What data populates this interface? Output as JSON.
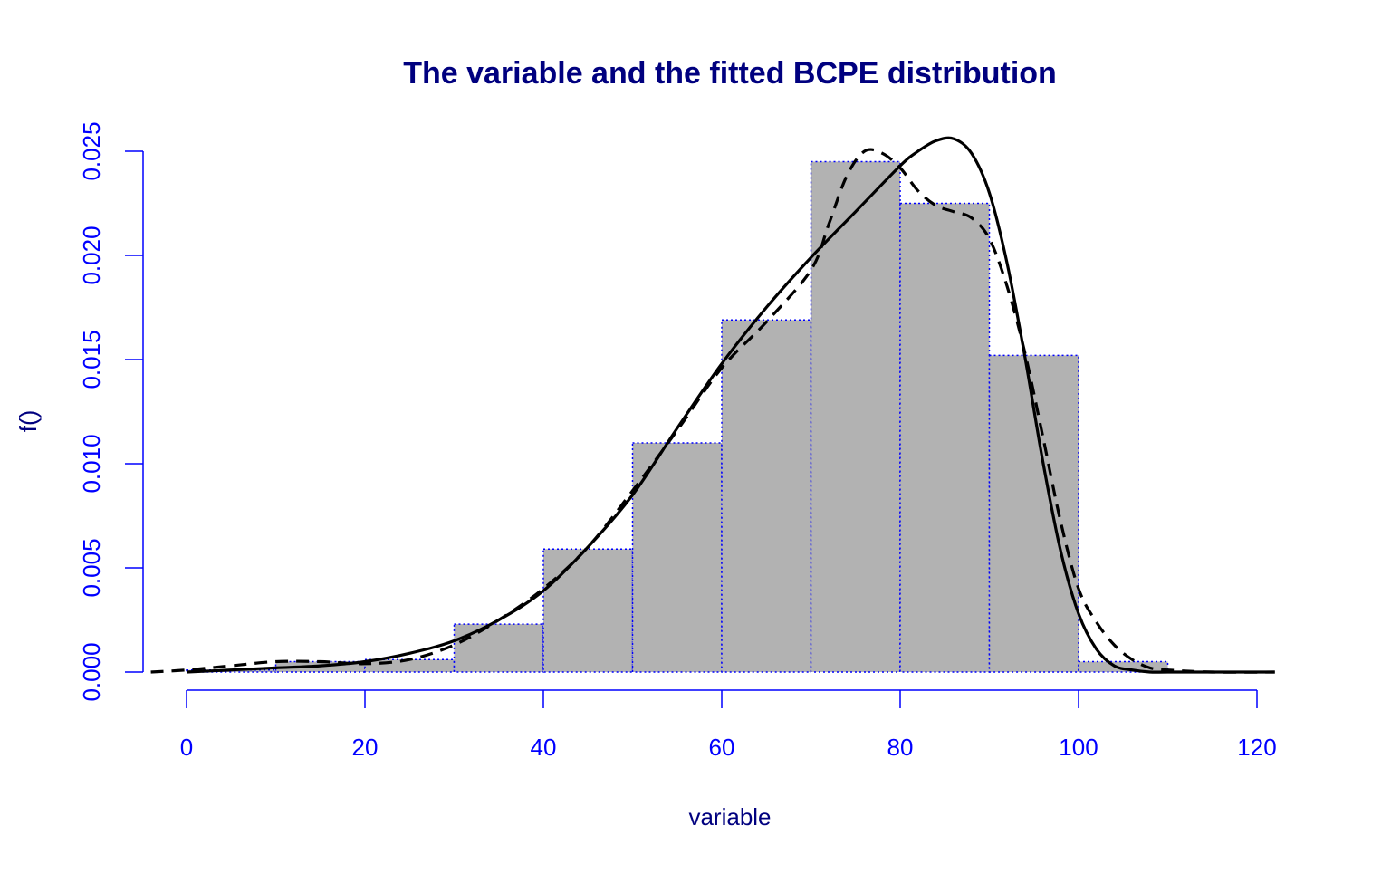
{
  "colors": {
    "title": "#00007f",
    "axis": "#0000ff",
    "axis_label": "#00007f",
    "bar_fill": "#b2b2b2",
    "bar_border": "#0000ff",
    "curve": "#000000"
  },
  "chart_data": {
    "type": "bar",
    "title": "The variable and the fitted BCPE distribution",
    "xlabel": "variable",
    "ylabel": "f()",
    "xlim": [
      -4,
      122
    ],
    "ylim": [
      0,
      0.025
    ],
    "x_ticks": [
      0,
      20,
      40,
      60,
      80,
      100,
      120
    ],
    "x_tick_labels": [
      "0",
      "20",
      "40",
      "60",
      "80",
      "100",
      "120"
    ],
    "y_ticks": [
      0,
      0.005,
      0.01,
      0.015,
      0.02,
      0.025
    ],
    "y_tick_labels": [
      "0.000",
      "0.005",
      "0.010",
      "0.015",
      "0.020",
      "0.025"
    ],
    "grid": false,
    "histogram": {
      "bin_edges": [
        0,
        10,
        20,
        30,
        40,
        50,
        60,
        70,
        80,
        90,
        100,
        110
      ],
      "density": [
        0.0001,
        0.0005,
        0.0006,
        0.0023,
        0.0059,
        0.011,
        0.0169,
        0.0245,
        0.0225,
        0.0152,
        0.0005
      ]
    },
    "series": [
      {
        "style": "solid",
        "x": [
          0,
          5,
          10,
          15,
          20,
          25,
          30,
          35,
          40,
          45,
          50,
          55,
          60,
          65,
          70,
          75,
          80,
          82,
          84,
          86,
          88,
          90,
          92,
          94,
          96,
          98,
          100,
          102,
          104,
          106,
          108,
          110,
          115,
          122
        ],
        "y": [
          0,
          0.0001,
          0.0002,
          0.0003,
          0.0005,
          0.0009,
          0.0015,
          0.0025,
          0.0039,
          0.006,
          0.0085,
          0.0117,
          0.0148,
          0.0175,
          0.0199,
          0.0221,
          0.0243,
          0.025,
          0.0255,
          0.0256,
          0.0249,
          0.023,
          0.0196,
          0.0151,
          0.0101,
          0.0058,
          0.0028,
          0.0011,
          0.0003,
          0.0001,
          0,
          0,
          0,
          0
        ]
      },
      {
        "style": "dashed",
        "x": [
          -4,
          0,
          5,
          10,
          15,
          20,
          25,
          30,
          35,
          40,
          45,
          50,
          55,
          60,
          65,
          70,
          72,
          74,
          76,
          78,
          80,
          82,
          84,
          86,
          88,
          90,
          92,
          94,
          96,
          98,
          100,
          102,
          104,
          106,
          108,
          110,
          115,
          122
        ],
        "y": [
          0,
          0.0001,
          0.0003,
          0.0005,
          0.0005,
          0.0004,
          0.0006,
          0.0013,
          0.0025,
          0.004,
          0.006,
          0.0087,
          0.0116,
          0.0146,
          0.0168,
          0.0193,
          0.0215,
          0.0238,
          0.025,
          0.0249,
          0.0242,
          0.0231,
          0.0224,
          0.0221,
          0.0218,
          0.0208,
          0.0185,
          0.0153,
          0.0113,
          0.0072,
          0.004,
          0.0024,
          0.0013,
          0.0006,
          0.0002,
          0.0001,
          0,
          0
        ]
      }
    ]
  }
}
